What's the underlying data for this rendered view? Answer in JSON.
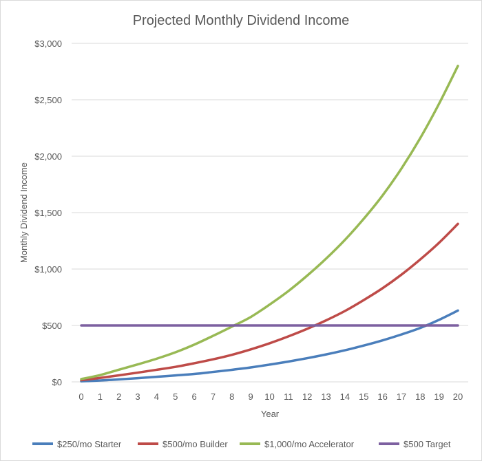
{
  "chart_data": {
    "type": "line",
    "title": "Projected Monthly Dividend Income",
    "xlabel": "Year",
    "ylabel": "Monthly Dividend Income",
    "xlim": [
      0,
      20
    ],
    "ylim": [
      0,
      3000
    ],
    "x": [
      0,
      1,
      2,
      3,
      4,
      5,
      6,
      7,
      8,
      9,
      10,
      11,
      12,
      13,
      14,
      15,
      16,
      17,
      18,
      19,
      20
    ],
    "yticks": [
      "$0",
      "$500",
      "$1,000",
      "$1,500",
      "$2,000",
      "$2,500",
      "$3,000"
    ],
    "ytick_values": [
      0,
      500,
      1000,
      1500,
      2000,
      2500,
      3000
    ],
    "grid": "horizontal",
    "legend_position": "bottom",
    "series": [
      {
        "name": "$250/mo Starter",
        "color": "#4a7ebb",
        "values": [
          5,
          12,
          22,
          33,
          45,
          57,
          70,
          88,
          107,
          128,
          153,
          180,
          210,
          243,
          280,
          322,
          368,
          420,
          478,
          550,
          632
        ]
      },
      {
        "name": "$500/mo Builder",
        "color": "#be4b48",
        "values": [
          15,
          35,
          58,
          82,
          107,
          133,
          165,
          200,
          240,
          288,
          342,
          403,
          470,
          545,
          628,
          725,
          830,
          950,
          1085,
          1233,
          1400
        ]
      },
      {
        "name": "$1,000/mo Accelerator",
        "color": "#98b954",
        "values": [
          25,
          60,
          108,
          155,
          205,
          262,
          330,
          408,
          490,
          575,
          685,
          805,
          942,
          1092,
          1258,
          1445,
          1652,
          1890,
          2160,
          2465,
          2800
        ]
      },
      {
        "name": "$500 Target",
        "color": "#7d60a0",
        "values": [
          500,
          500,
          500,
          500,
          500,
          500,
          500,
          500,
          500,
          500,
          500,
          500,
          500,
          500,
          500,
          500,
          500,
          500,
          500,
          500,
          500
        ]
      }
    ]
  }
}
